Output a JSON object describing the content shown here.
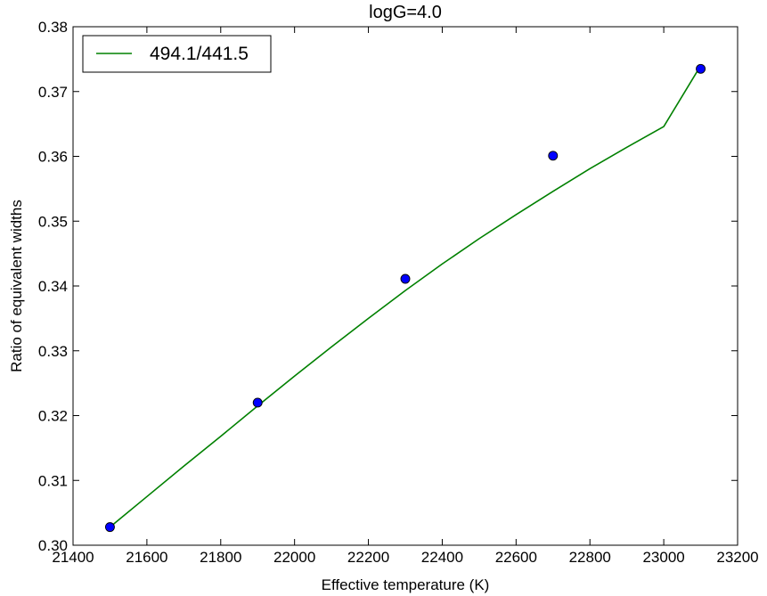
{
  "chart_data": {
    "type": "line",
    "title": "logG=4.0",
    "xlabel": "Effective temperature (K)",
    "ylabel": "Ratio of equivalent widths",
    "xlim": [
      21400,
      23200
    ],
    "ylim": [
      0.3,
      0.38
    ],
    "x_ticks": [
      "21400",
      "21600",
      "21800",
      "22000",
      "22200",
      "22400",
      "22600",
      "22800",
      "23000",
      "23200"
    ],
    "y_ticks": [
      "0.30",
      "0.31",
      "0.32",
      "0.33",
      "0.34",
      "0.35",
      "0.36",
      "0.37",
      "0.38"
    ],
    "grid": false,
    "legend": {
      "position": "top-left"
    },
    "series": [
      {
        "name": "494.1/441.5",
        "kind": "line",
        "color": "#008000",
        "x": [
          21500,
          21600,
          21700,
          21800,
          21900,
          22000,
          22100,
          22200,
          22300,
          22400,
          22500,
          22600,
          22700,
          22800,
          22900,
          23000,
          23100
        ],
        "y": [
          0.3028,
          0.3075,
          0.3122,
          0.3168,
          0.3215,
          0.3261,
          0.3306,
          0.335,
          0.3393,
          0.3434,
          0.3473,
          0.351,
          0.3546,
          0.3581,
          0.3614,
          0.3646,
          0.374
        ]
      },
      {
        "kind": "scatter",
        "color": "#0000ff",
        "x": [
          21500,
          21900,
          22300,
          22700,
          23100
        ],
        "y": [
          0.3028,
          0.322,
          0.3411,
          0.3601,
          0.3735
        ]
      }
    ]
  }
}
